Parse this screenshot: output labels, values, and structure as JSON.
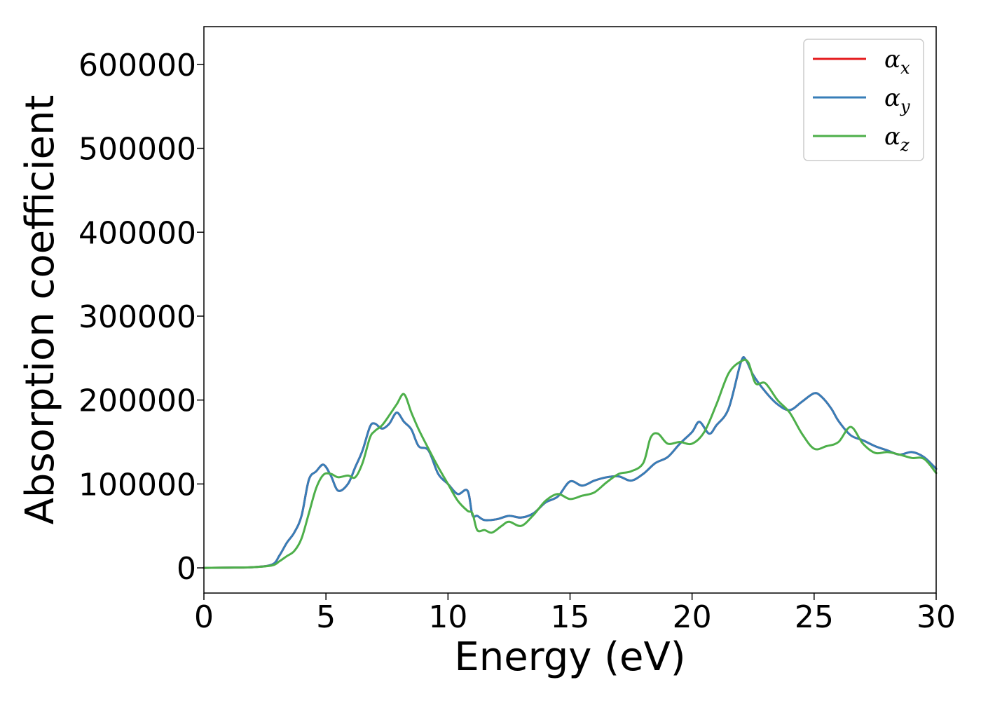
{
  "chart_data": {
    "type": "line",
    "xlabel": "Energy (eV)",
    "ylabel": "Absorption coefficient",
    "xlim": [
      0,
      30
    ],
    "ylim": [
      -30000,
      645000
    ],
    "xticks": [
      "0",
      "5",
      "10",
      "15",
      "20",
      "25",
      "30"
    ],
    "yticks": [
      "0",
      "100000",
      "200000",
      "300000",
      "400000",
      "500000",
      "600000"
    ],
    "grid": false,
    "legend_position": "top-right",
    "series": [
      {
        "name": "αx",
        "name_base": "α",
        "name_sub": "x",
        "color": "#e41a1c",
        "x": [
          0,
          1,
          2,
          2.8,
          3.1,
          3.4,
          3.7,
          4.0,
          4.3,
          4.6,
          4.9,
          5.2,
          5.5,
          5.9,
          6.2,
          6.5,
          6.8,
          7.0,
          7.3,
          7.6,
          7.9,
          8.2,
          8.5,
          8.8,
          9.2,
          9.6,
          10.0,
          10.4,
          10.8,
          11.0,
          11.2,
          11.5,
          12.0,
          12.5,
          13.0,
          13.5,
          14.0,
          14.5,
          15.0,
          15.5,
          16.0,
          16.5,
          17.0,
          17.5,
          18.0,
          18.5,
          19.0,
          19.5,
          20.0,
          20.3,
          20.7,
          21.0,
          21.5,
          22.0,
          22.2,
          22.5,
          23.0,
          23.5,
          24.0,
          24.5,
          25.0,
          25.3,
          25.7,
          26.0,
          26.5,
          27.0,
          27.5,
          28.0,
          28.5,
          29.0,
          29.5,
          30.0
        ],
        "values": [
          0,
          300,
          800,
          4000,
          15000,
          30000,
          42000,
          62000,
          105000,
          115000,
          123000,
          110000,
          92000,
          100000,
          120000,
          140000,
          168000,
          172000,
          166000,
          172000,
          185000,
          174000,
          165000,
          145000,
          140000,
          112000,
          100000,
          88000,
          92000,
          63000,
          62000,
          57000,
          58000,
          62000,
          60000,
          65000,
          78000,
          85000,
          103000,
          98000,
          104000,
          108000,
          109000,
          104000,
          112000,
          125000,
          132000,
          148000,
          162000,
          174000,
          160000,
          170000,
          190000,
          245000,
          248000,
          230000,
          210000,
          195000,
          188000,
          198000,
          208000,
          204000,
          190000,
          175000,
          158000,
          152000,
          145000,
          140000,
          135000,
          138000,
          132000,
          118000
        ]
      },
      {
        "name": "αy",
        "name_base": "α",
        "name_sub": "y",
        "color": "#377eb8",
        "x": [
          0,
          1,
          2,
          2.8,
          3.1,
          3.4,
          3.7,
          4.0,
          4.3,
          4.6,
          4.9,
          5.2,
          5.5,
          5.9,
          6.2,
          6.5,
          6.8,
          7.0,
          7.3,
          7.6,
          7.9,
          8.2,
          8.5,
          8.8,
          9.2,
          9.6,
          10.0,
          10.4,
          10.8,
          11.0,
          11.2,
          11.5,
          12.0,
          12.5,
          13.0,
          13.5,
          14.0,
          14.5,
          15.0,
          15.5,
          16.0,
          16.5,
          17.0,
          17.5,
          18.0,
          18.5,
          19.0,
          19.5,
          20.0,
          20.3,
          20.7,
          21.0,
          21.5,
          22.0,
          22.2,
          22.5,
          23.0,
          23.5,
          24.0,
          24.5,
          25.0,
          25.3,
          25.7,
          26.0,
          26.5,
          27.0,
          27.5,
          28.0,
          28.5,
          29.0,
          29.5,
          30.0
        ],
        "values": [
          0,
          300,
          800,
          4000,
          15000,
          30000,
          42000,
          62000,
          105000,
          115000,
          123000,
          110000,
          92000,
          100000,
          120000,
          140000,
          168000,
          172000,
          166000,
          172000,
          185000,
          174000,
          165000,
          145000,
          140000,
          112000,
          100000,
          88000,
          92000,
          63000,
          62000,
          57000,
          58000,
          62000,
          60000,
          65000,
          78000,
          85000,
          103000,
          98000,
          104000,
          108000,
          109000,
          104000,
          112000,
          125000,
          132000,
          148000,
          162000,
          174000,
          160000,
          170000,
          190000,
          245000,
          248000,
          230000,
          210000,
          195000,
          188000,
          198000,
          208000,
          204000,
          190000,
          175000,
          158000,
          152000,
          145000,
          140000,
          135000,
          138000,
          132000,
          118000
        ]
      },
      {
        "name": "αz",
        "name_base": "α",
        "name_sub": "z",
        "color": "#4daf4a",
        "x": [
          0,
          1,
          2,
          2.8,
          3.1,
          3.4,
          3.7,
          4.0,
          4.3,
          4.6,
          4.9,
          5.2,
          5.5,
          5.9,
          6.2,
          6.5,
          6.8,
          7.0,
          7.3,
          7.6,
          7.9,
          8.2,
          8.5,
          8.8,
          9.2,
          9.6,
          10.0,
          10.4,
          10.8,
          11.0,
          11.2,
          11.5,
          11.8,
          12.2,
          12.5,
          13.0,
          13.5,
          14.0,
          14.5,
          15.0,
          15.5,
          16.0,
          16.5,
          17.0,
          17.5,
          18.0,
          18.3,
          18.6,
          19.0,
          19.5,
          20.0,
          20.5,
          21.0,
          21.5,
          22.0,
          22.3,
          22.6,
          23.0,
          23.5,
          24.0,
          24.5,
          25.0,
          25.5,
          26.0,
          26.5,
          27.0,
          27.5,
          28.0,
          28.5,
          29.0,
          29.5,
          30.0
        ],
        "values": [
          0,
          300,
          800,
          3000,
          8000,
          14000,
          20000,
          35000,
          65000,
          95000,
          111000,
          112000,
          108000,
          110000,
          108000,
          125000,
          155000,
          163000,
          170000,
          182000,
          195000,
          207000,
          185000,
          165000,
          142000,
          120000,
          100000,
          80000,
          68000,
          65000,
          45000,
          45000,
          42000,
          50000,
          55000,
          50000,
          63000,
          80000,
          88000,
          82000,
          86000,
          90000,
          102000,
          112000,
          115000,
          125000,
          155000,
          160000,
          148000,
          150000,
          148000,
          162000,
          195000,
          232000,
          246000,
          245000,
          220000,
          220000,
          200000,
          185000,
          160000,
          142000,
          145000,
          150000,
          168000,
          148000,
          137000,
          138000,
          135000,
          131000,
          130000,
          113000
        ]
      }
    ]
  }
}
